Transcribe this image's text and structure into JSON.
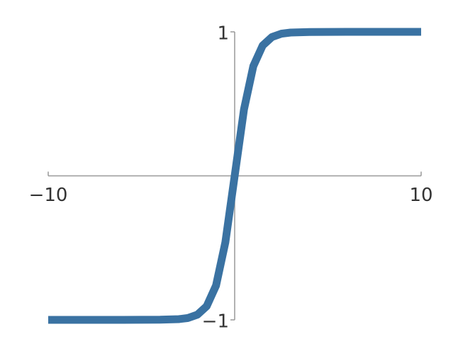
{
  "chart_data": {
    "type": "line",
    "x": [
      -10,
      -8,
      -6,
      -4,
      -3,
      -2.5,
      -2,
      -1.5,
      -1,
      -0.5,
      0,
      0.5,
      1,
      1.5,
      2,
      2.5,
      3,
      4,
      6,
      8,
      10
    ],
    "series": [
      {
        "color": "#3a72a2",
        "values": [
          -1,
          -1,
          -1,
          -0.999,
          -0.995,
          -0.987,
          -0.964,
          -0.905,
          -0.762,
          -0.462,
          0,
          0.462,
          0.762,
          0.905,
          0.964,
          0.987,
          0.995,
          0.999,
          1,
          1,
          1
        ]
      }
    ],
    "xlim": [
      -10,
      10
    ],
    "xticks": [
      {
        "value": -10,
        "label": "−10"
      },
      10
    ],
    "ylim": [
      -1,
      1
    ],
    "yticks": [
      {
        "value": -1,
        "label": "−1"
      },
      1
    ]
  }
}
